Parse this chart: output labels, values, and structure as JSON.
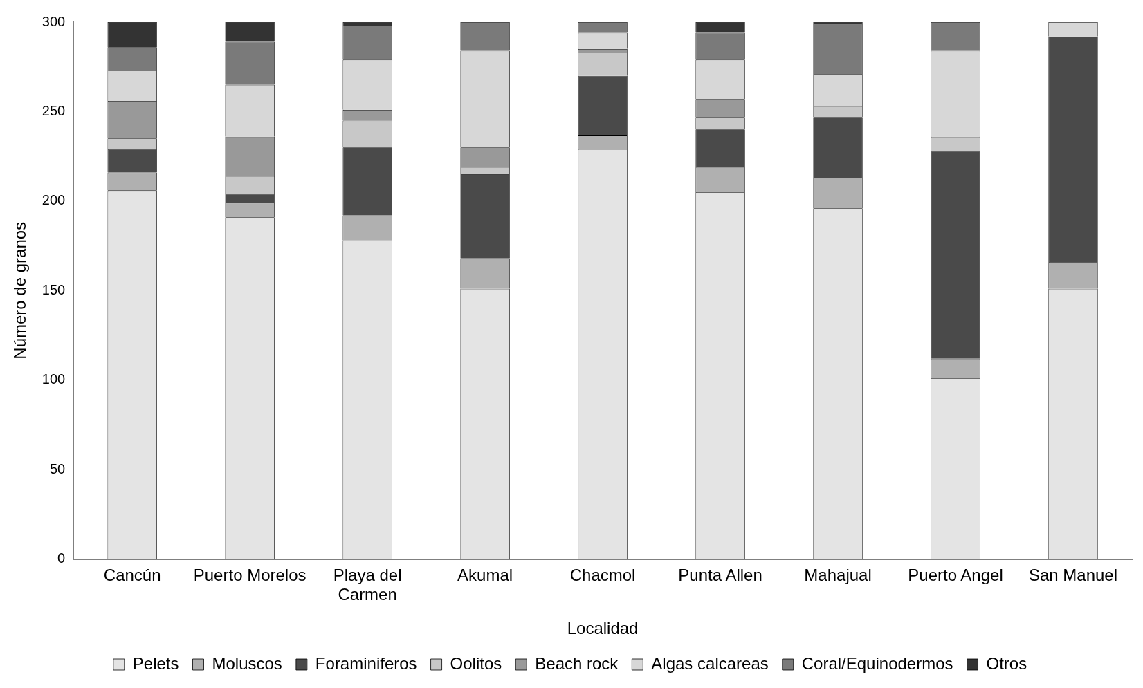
{
  "chart_data": {
    "type": "bar",
    "stacked": true,
    "xlabel": "Localidad",
    "ylabel": "Número de granos",
    "categories": [
      "Cancún",
      "Puerto Morelos",
      "Playa del Carmen",
      "Akumal",
      "Chacmol",
      "Punta Allen",
      "Mahajual",
      "Puerto Angel",
      "San Manuel"
    ],
    "series": [
      {
        "name": "Pelets",
        "color": "#e4e4e4",
        "values": [
          206,
          191,
          178,
          151,
          229,
          205,
          196,
          101,
          151
        ]
      },
      {
        "name": "Moluscos",
        "color": "#b0b0b0",
        "values": [
          10,
          8,
          14,
          17,
          8,
          14,
          17,
          11,
          15
        ]
      },
      {
        "name": "Foraminiferos",
        "color": "#4a4a4a",
        "values": [
          13,
          5,
          38,
          47,
          33,
          21,
          34,
          116,
          126
        ]
      },
      {
        "name": "Oolitos",
        "color": "#c8c8c8",
        "values": [
          6,
          10,
          15,
          4,
          13,
          7,
          6,
          8,
          0
        ]
      },
      {
        "name": "Beach rock",
        "color": "#999999",
        "values": [
          21,
          22,
          6,
          11,
          2,
          10,
          0,
          0,
          0
        ]
      },
      {
        "name": "Algas calcareas",
        "color": "#d7d7d7",
        "values": [
          17,
          29,
          28,
          54,
          9,
          22,
          18,
          48,
          8
        ]
      },
      {
        "name": "Coral/Equinodermos",
        "color": "#7a7a7a",
        "values": [
          13,
          24,
          19,
          16,
          6,
          15,
          28,
          16,
          0
        ]
      },
      {
        "name": "Otros",
        "color": "#333333",
        "values": [
          14,
          11,
          2,
          0,
          0,
          6,
          1,
          0,
          0
        ]
      }
    ],
    "ylim": [
      0,
      300
    ],
    "yticks": [
      0,
      50,
      100,
      150,
      200,
      250,
      300
    ],
    "grid": false,
    "legend": "bottom"
  }
}
